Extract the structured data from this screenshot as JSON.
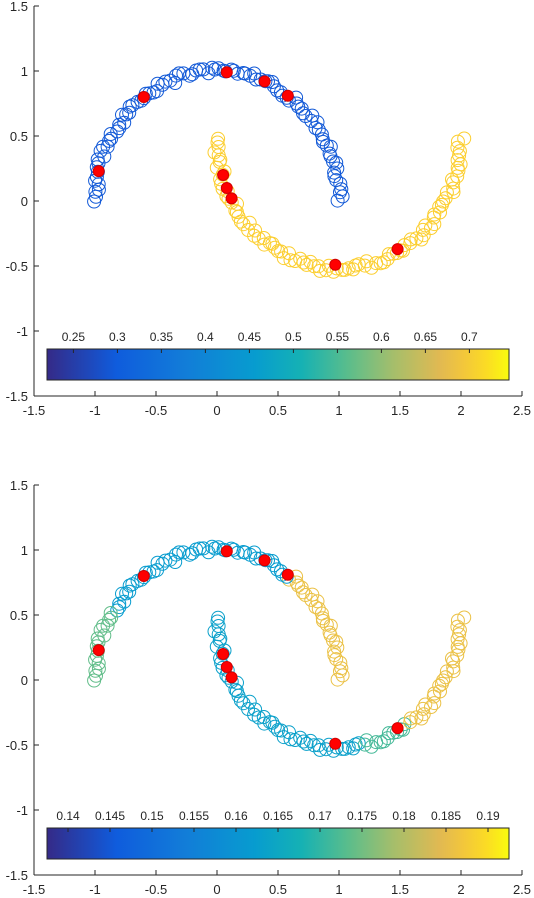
{
  "chart_data": [
    {
      "type": "scatter",
      "title": "",
      "xlabel": "",
      "ylabel": "",
      "xlim": [
        -1.5,
        2.5
      ],
      "ylim": [
        -1.5,
        1.5
      ],
      "xticks": [
        "-1.5",
        "-1",
        "-0.5",
        "0",
        "0.5",
        "1",
        "1.5",
        "2",
        "2.5"
      ],
      "yticks": [
        "-1.5",
        "-1",
        "-0.5",
        "0",
        "0.5",
        "1",
        "1.5"
      ],
      "grid": false,
      "colormap": "parula",
      "colorbar": {
        "location": "bottom-inside",
        "range": [
          0.22,
          0.745
        ],
        "ticks": [
          "0.25",
          "0.3",
          "0.35",
          "0.4",
          "0.45",
          "0.5",
          "0.55",
          "0.6",
          "0.65",
          "0.7"
        ]
      },
      "series": [
        {
          "marker": "open-circle",
          "description_color_upper_moon": 0.29,
          "description_color_lower_moon": 0.71
        },
        {
          "marker": "filled-circle",
          "color": "#ff0000",
          "x": [
            -0.97,
            -0.6,
            0.08,
            0.39,
            0.58,
            0.05,
            0.08,
            0.12,
            0.97,
            1.48
          ],
          "y": [
            0.23,
            0.8,
            0.99,
            0.92,
            0.81,
            0.2,
            0.1,
            0.02,
            -0.49,
            -0.37
          ]
        }
      ]
    },
    {
      "type": "scatter",
      "title": "",
      "xlabel": "",
      "ylabel": "",
      "xlim": [
        -1.5,
        2.5
      ],
      "ylim": [
        -1.5,
        1.5
      ],
      "xticks": [
        "-1.5",
        "-1",
        "-0.5",
        "0",
        "0.5",
        "1",
        "1.5",
        "2",
        "2.5"
      ],
      "yticks": [
        "-1.5",
        "-1",
        "-0.5",
        "0",
        "0.5",
        "1",
        "1.5"
      ],
      "grid": false,
      "colormap": "parula",
      "colorbar": {
        "location": "bottom-inside",
        "range": [
          0.1375,
          0.1925
        ],
        "ticks": [
          "0.14",
          "0.145",
          "0.15",
          "0.155",
          "0.16",
          "0.165",
          "0.17",
          "0.175",
          "0.18",
          "0.185",
          "0.19"
        ]
      },
      "series": [
        {
          "marker": "open-circle"
        },
        {
          "marker": "filled-circle",
          "color": "#ff0000",
          "x": [
            -0.97,
            -0.6,
            0.08,
            0.39,
            0.58,
            0.05,
            0.08,
            0.12,
            0.97,
            1.48
          ],
          "y": [
            0.23,
            0.8,
            0.99,
            0.92,
            0.81,
            0.2,
            0.1,
            0.02,
            -0.49,
            -0.37
          ]
        }
      ]
    }
  ]
}
